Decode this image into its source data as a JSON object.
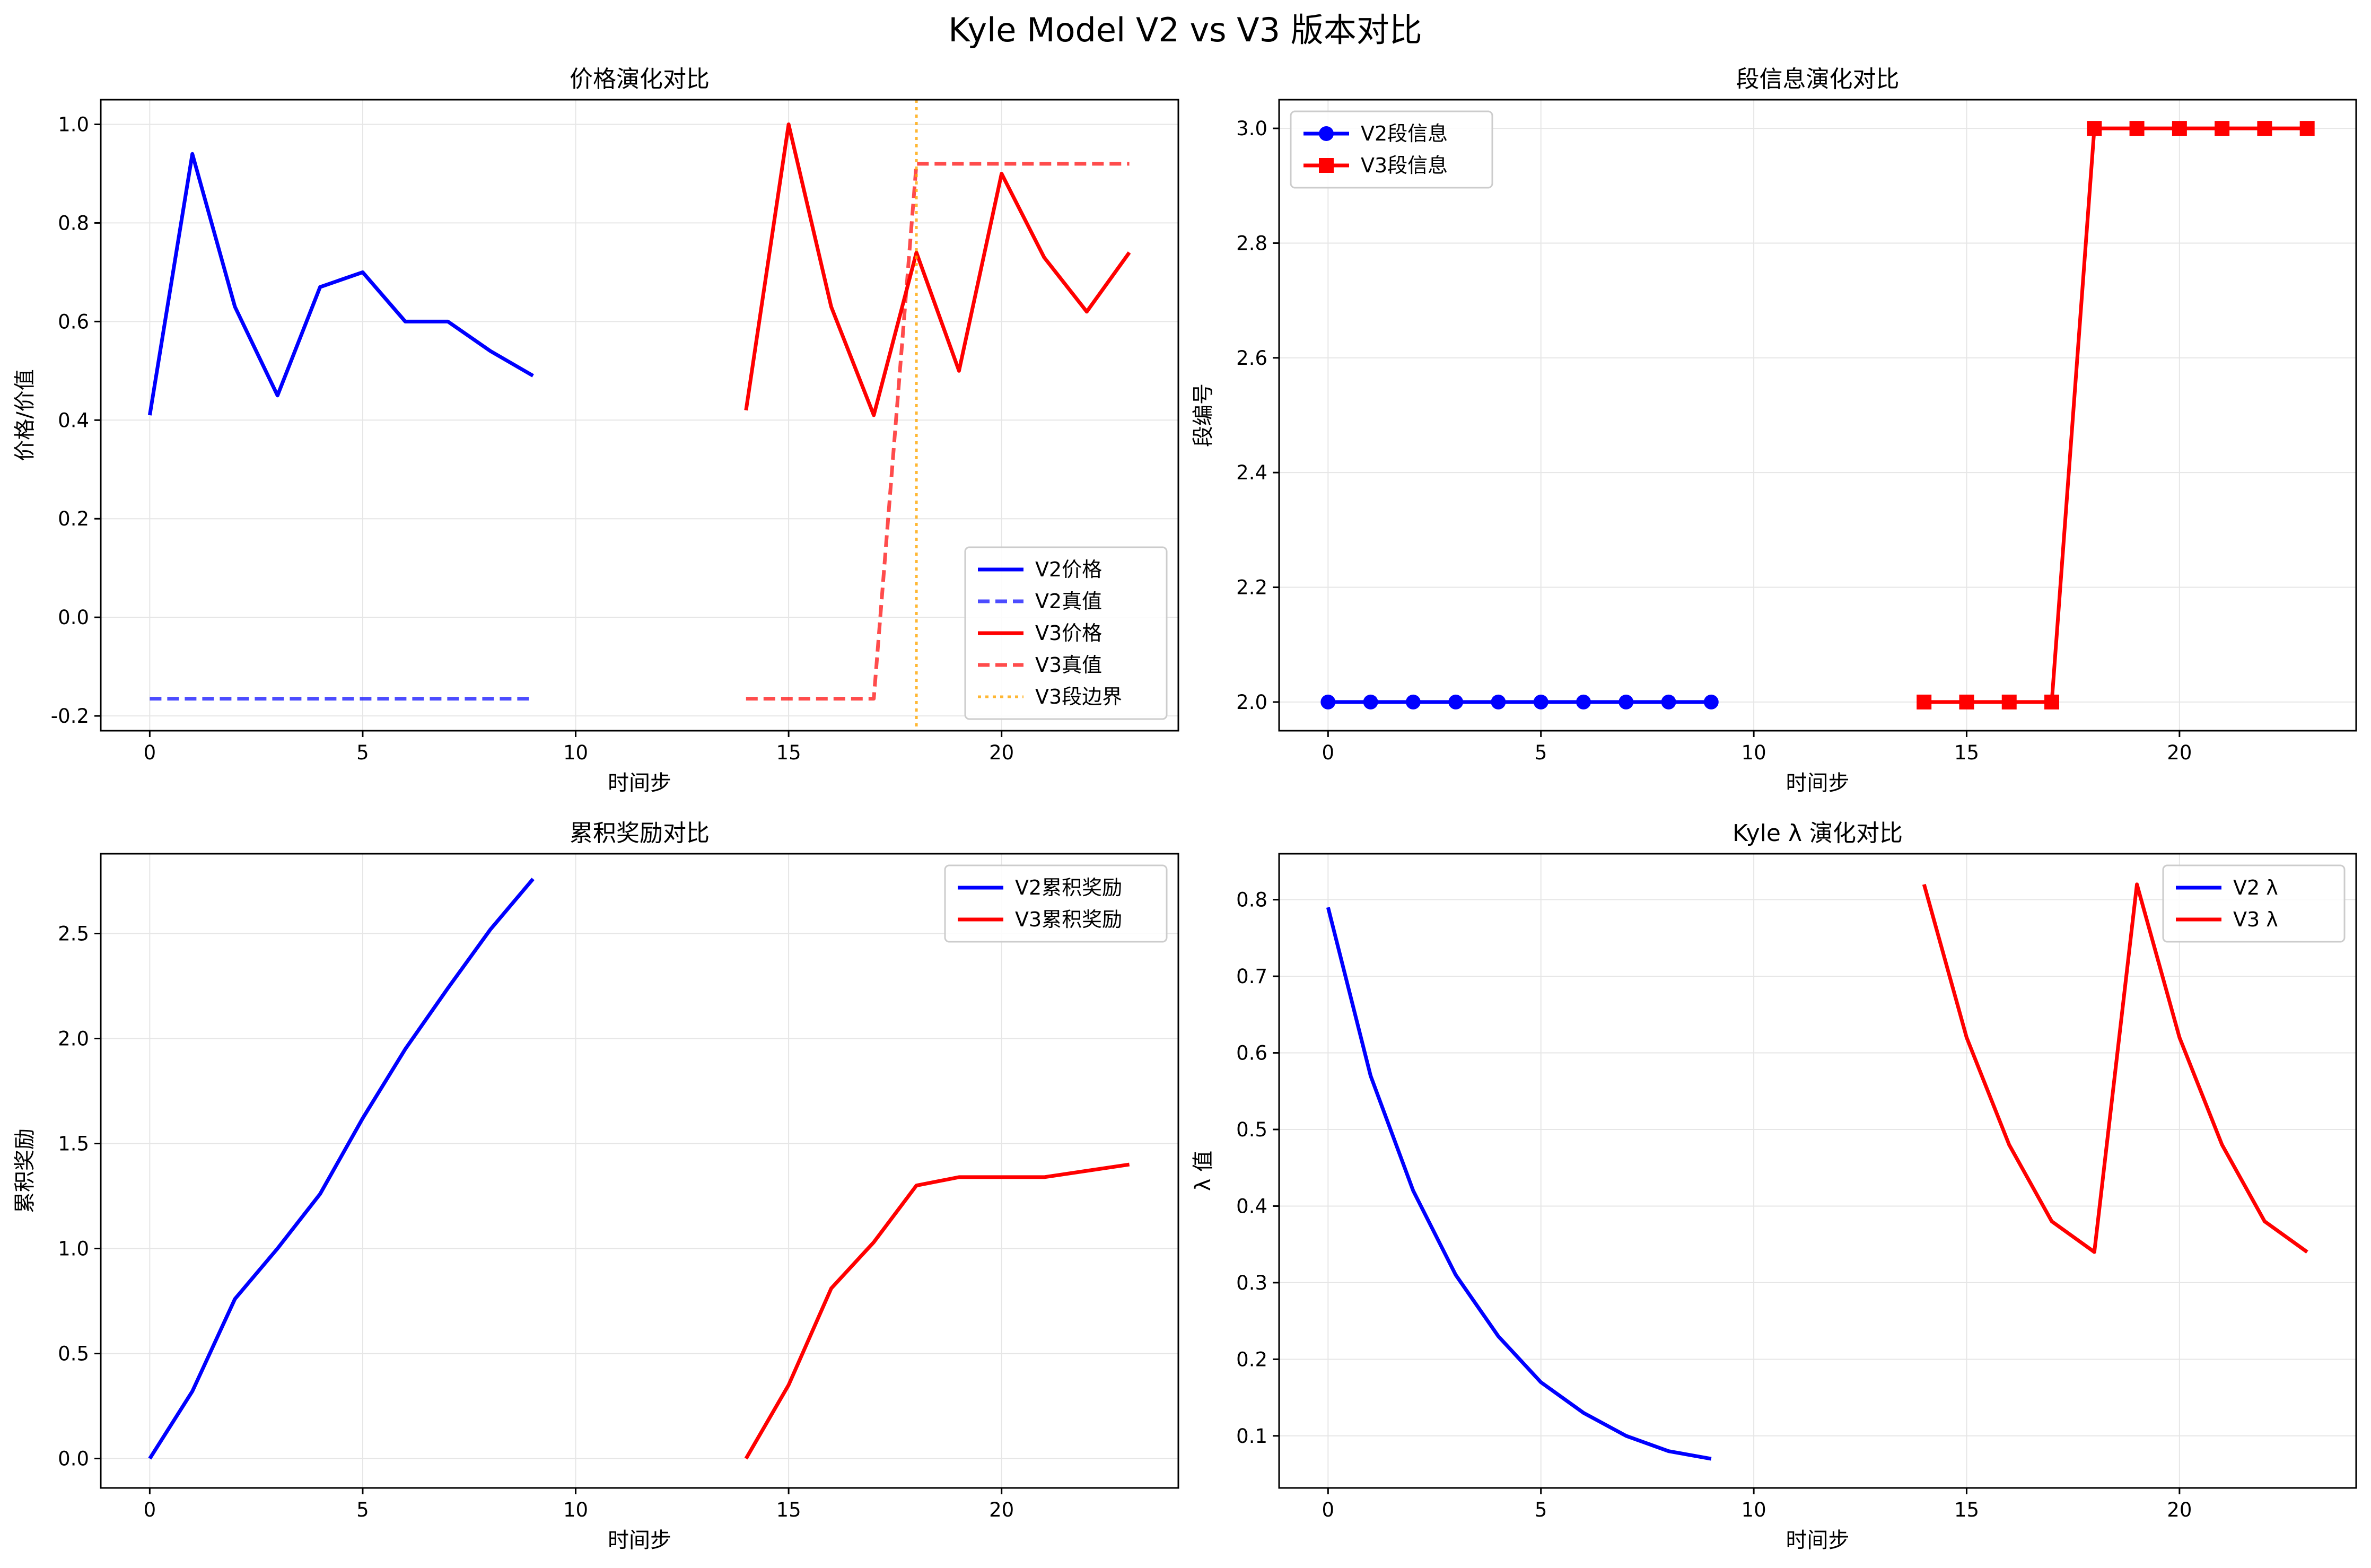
{
  "figure": {
    "title": "Kyle Model V2 vs V3 版本对比"
  },
  "colors": {
    "v2": "#0000ff",
    "v3": "#ff0000",
    "boundary": "#ffa500",
    "grid": "#e6e6e6"
  },
  "chart_data": [
    {
      "type": "line",
      "title": "价格演化对比",
      "xlabel": "时间步",
      "ylabel": "价格/价值",
      "xlim": [
        -1.15,
        24.15
      ],
      "ylim": [
        -0.23,
        1.05
      ],
      "xticks": [
        0,
        5,
        10,
        15,
        20
      ],
      "yticks": [
        -0.2,
        0.0,
        0.2,
        0.4,
        0.6,
        0.8,
        1.0
      ],
      "ytick_labels": [
        "-0.2",
        "0.0",
        "0.2",
        "0.4",
        "0.6",
        "0.8",
        "1.0"
      ],
      "grid": true,
      "legend_position": "lower-right",
      "series": [
        {
          "name": "V2价格",
          "color": "#0000ff",
          "dash": "solid",
          "x": [
            0,
            1,
            2,
            3,
            4,
            5,
            6,
            7,
            8,
            9
          ],
          "y": [
            0.41,
            0.94,
            0.63,
            0.45,
            0.67,
            0.7,
            0.6,
            0.6,
            0.54,
            0.49
          ]
        },
        {
          "name": "V2真值",
          "color": "#0000ff",
          "dash": "dashed",
          "opacity": 0.7,
          "x": [
            0,
            1,
            2,
            3,
            4,
            5,
            6,
            7,
            8,
            9
          ],
          "y": [
            -0.165,
            -0.165,
            -0.165,
            -0.165,
            -0.165,
            -0.165,
            -0.165,
            -0.165,
            -0.165,
            -0.165
          ]
        },
        {
          "name": "V3价格",
          "color": "#ff0000",
          "dash": "solid",
          "x": [
            14,
            15,
            16,
            17,
            18,
            19,
            20,
            21,
            22,
            23
          ],
          "y": [
            0.42,
            1.0,
            0.63,
            0.41,
            0.74,
            0.5,
            0.9,
            0.73,
            0.62,
            0.74
          ]
        },
        {
          "name": "V3真值",
          "color": "#ff0000",
          "dash": "dashed",
          "opacity": 0.7,
          "x": [
            14,
            15,
            16,
            17,
            18,
            19,
            20,
            21,
            22,
            23
          ],
          "y": [
            -0.165,
            -0.165,
            -0.165,
            -0.165,
            0.92,
            0.92,
            0.92,
            0.92,
            0.92,
            0.92
          ]
        },
        {
          "name": "V3段边界",
          "color": "#ffa500",
          "dash": "dotted",
          "opacity": 0.8,
          "vline": 18
        }
      ]
    },
    {
      "type": "line",
      "title": "段信息演化对比",
      "xlabel": "时间步",
      "ylabel": "段编号",
      "xlim": [
        -1.15,
        24.15
      ],
      "ylim": [
        1.95,
        3.05
      ],
      "xticks": [
        0,
        5,
        10,
        15,
        20
      ],
      "yticks": [
        2.0,
        2.2,
        2.4,
        2.6,
        2.8,
        3.0
      ],
      "ytick_labels": [
        "2.0",
        "2.2",
        "2.4",
        "2.6",
        "2.8",
        "3.0"
      ],
      "grid": true,
      "legend_position": "upper-left",
      "series": [
        {
          "name": "V2段信息",
          "color": "#0000ff",
          "dash": "solid",
          "marker": "circle",
          "x": [
            0,
            1,
            2,
            3,
            4,
            5,
            6,
            7,
            8,
            9
          ],
          "y": [
            2,
            2,
            2,
            2,
            2,
            2,
            2,
            2,
            2,
            2
          ]
        },
        {
          "name": "V3段信息",
          "color": "#ff0000",
          "dash": "solid",
          "marker": "square",
          "x": [
            14,
            15,
            16,
            17,
            18,
            19,
            20,
            21,
            22,
            23
          ],
          "y": [
            2,
            2,
            2,
            2,
            3,
            3,
            3,
            3,
            3,
            3
          ]
        }
      ]
    },
    {
      "type": "line",
      "title": "累积奖励对比",
      "xlabel": "时间步",
      "ylabel": "累积奖励",
      "xlim": [
        -1.15,
        24.15
      ],
      "ylim": [
        -0.14,
        2.88
      ],
      "xticks": [
        0,
        5,
        10,
        15,
        20
      ],
      "yticks": [
        0.0,
        0.5,
        1.0,
        1.5,
        2.0,
        2.5
      ],
      "ytick_labels": [
        "0.0",
        "0.5",
        "1.0",
        "1.5",
        "2.0",
        "2.5"
      ],
      "grid": true,
      "legend_position": "upper-right",
      "series": [
        {
          "name": "V2累积奖励",
          "color": "#0000ff",
          "dash": "solid",
          "x": [
            0,
            1,
            2,
            3,
            4,
            5,
            6,
            7,
            8,
            9
          ],
          "y": [
            0.0,
            0.32,
            0.76,
            1.0,
            1.26,
            1.62,
            1.95,
            2.24,
            2.52,
            2.76
          ]
        },
        {
          "name": "V3累积奖励",
          "color": "#ff0000",
          "dash": "solid",
          "x": [
            14,
            15,
            16,
            17,
            18,
            19,
            20,
            21,
            22,
            23
          ],
          "y": [
            0.0,
            0.35,
            0.81,
            1.03,
            1.3,
            1.34,
            1.34,
            1.34,
            1.37,
            1.4
          ]
        }
      ]
    },
    {
      "type": "line",
      "title": "Kyle λ 演化对比",
      "xlabel": "时间步",
      "ylabel": "λ 值",
      "xlim": [
        -1.15,
        24.15
      ],
      "ylim": [
        0.032,
        0.86
      ],
      "xticks": [
        0,
        5,
        10,
        15,
        20
      ],
      "yticks": [
        0.1,
        0.2,
        0.3,
        0.4,
        0.5,
        0.6,
        0.7,
        0.8
      ],
      "ytick_labels": [
        "0.1",
        "0.2",
        "0.3",
        "0.4",
        "0.5",
        "0.6",
        "0.7",
        "0.8"
      ],
      "grid": true,
      "legend_position": "upper-right",
      "series": [
        {
          "name": "V2 λ",
          "color": "#0000ff",
          "dash": "solid",
          "x": [
            0,
            1,
            2,
            3,
            4,
            5,
            6,
            7,
            8,
            9
          ],
          "y": [
            0.79,
            0.57,
            0.42,
            0.31,
            0.23,
            0.17,
            0.13,
            0.1,
            0.08,
            0.07
          ]
        },
        {
          "name": "V3 λ",
          "color": "#ff0000",
          "dash": "solid",
          "x": [
            14,
            15,
            16,
            17,
            18,
            19,
            20,
            21,
            22,
            23
          ],
          "y": [
            0.82,
            0.62,
            0.48,
            0.38,
            0.34,
            0.82,
            0.62,
            0.48,
            0.38,
            0.34
          ]
        }
      ]
    }
  ]
}
